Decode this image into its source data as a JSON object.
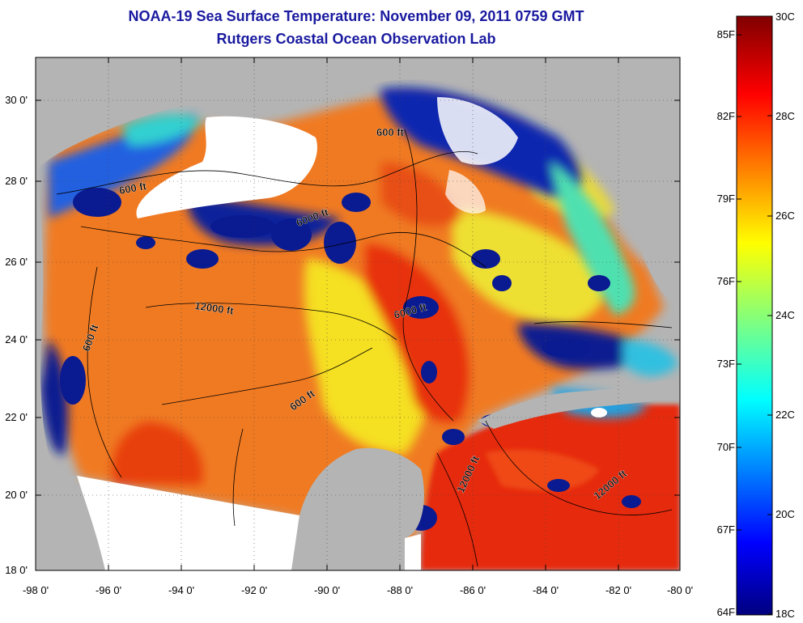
{
  "header": {
    "title": "NOAA-19 Sea Surface Temperature:  November 09, 2011 0759 GMT",
    "subtitle": "Rutgers Coastal Ocean Observation Lab"
  },
  "map": {
    "region": "Gulf of Mexico",
    "lat_ticks": [
      "30 0'",
      "28 0'",
      "26 0'",
      "24 0'",
      "22 0'",
      "20 0'",
      "18 0'"
    ],
    "lon_ticks": [
      "-98 0'",
      "-96 0'",
      "-94 0'",
      "-92 0'",
      "-90 0'",
      "-88 0'",
      "-86 0'",
      "-84 0'",
      "-82 0'",
      "-80 0'"
    ],
    "lat_range": [
      18,
      31
    ],
    "lon_range": [
      -98,
      -80
    ],
    "contour_labels": [
      "600 ft",
      "600 ft",
      "6000 ft",
      "12000 ft",
      "6000 ft",
      "600 ft",
      "600 ft",
      "12000 ft",
      "12000 ft"
    ],
    "colors": {
      "land": "#b4b4b4",
      "cloud": "#ffffff",
      "frame": "#000000"
    }
  },
  "colorbar": {
    "fahrenheit_labels": [
      "85F",
      "82F",
      "79F",
      "76F",
      "73F",
      "70F",
      "67F",
      "64F"
    ],
    "celsius_labels": [
      "30C",
      "28C",
      "26C",
      "24C",
      "22C",
      "20C",
      "18C"
    ],
    "range_c": [
      18,
      30
    ],
    "colormap": "jet"
  }
}
